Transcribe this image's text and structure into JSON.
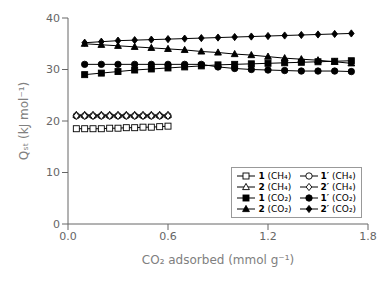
{
  "chart_data": {
    "type": "line",
    "title": "",
    "xlabel": "CO₂ adsorbed (mmol g⁻¹)",
    "ylabel": "Qₛₜ (kJ mol⁻¹)",
    "xlim": [
      0.0,
      1.8
    ],
    "ylim": [
      0,
      40
    ],
    "xticks": [
      {
        "value": 0.0,
        "label": "0.0"
      },
      0.6,
      1.2,
      1.8
    ],
    "yticks": [
      0,
      10,
      20,
      30,
      40
    ],
    "grid": false,
    "legend": "lower right",
    "series": [
      {
        "name": "1 (CH₄)",
        "color": "black",
        "marker": "open_square",
        "x": [
          0.05,
          0.1,
          0.15,
          0.2,
          0.25,
          0.3,
          0.35,
          0.4,
          0.45,
          0.5,
          0.55,
          0.6
        ],
        "values": [
          18.5,
          18.5,
          18.5,
          18.5,
          18.6,
          18.6,
          18.7,
          18.7,
          18.8,
          18.8,
          18.9,
          19.0
        ]
      },
      {
        "name": "1′ (CH₄)",
        "color": "black",
        "marker": "open_circle",
        "x": [
          0.05,
          0.1,
          0.15,
          0.2,
          0.25,
          0.3,
          0.35,
          0.4,
          0.45,
          0.5,
          0.55,
          0.6
        ],
        "values": [
          21.0,
          21.0,
          21.0,
          21.0,
          21.0,
          21.0,
          21.0,
          21.0,
          21.0,
          21.0,
          21.0,
          21.0
        ]
      },
      {
        "name": "2 (CH₄)",
        "color": "black",
        "marker": "open_triangle",
        "x": [
          0.05,
          0.1,
          0.15,
          0.2,
          0.25,
          0.3,
          0.35,
          0.4,
          0.45,
          0.5,
          0.55,
          0.6
        ],
        "values": [
          21.2,
          21.2,
          21.2,
          21.2,
          21.2,
          21.2,
          21.2,
          21.2,
          21.2,
          21.2,
          21.2,
          21.2
        ]
      },
      {
        "name": "2′ (CH₄)",
        "color": "black",
        "marker": "open_diamond",
        "x": [
          0.05,
          0.1,
          0.15,
          0.2,
          0.25,
          0.3,
          0.35,
          0.4,
          0.45,
          0.5,
          0.55,
          0.6
        ],
        "values": [
          21.0,
          21.0,
          21.0,
          21.0,
          21.0,
          21.0,
          21.0,
          21.0,
          21.0,
          21.0,
          21.0,
          21.0
        ]
      },
      {
        "name": "1 (CO₂)",
        "color": "black",
        "marker": "square",
        "x": [
          0.1,
          0.2,
          0.3,
          0.4,
          0.5,
          0.6,
          0.7,
          0.8,
          0.9,
          1.0,
          1.1,
          1.2,
          1.3,
          1.4,
          1.5,
          1.6,
          1.7
        ],
        "values": [
          29.0,
          29.3,
          29.6,
          29.9,
          30.1,
          30.3,
          30.5,
          30.7,
          30.9,
          31.0,
          31.1,
          31.2,
          31.3,
          31.4,
          31.5,
          31.6,
          31.7
        ]
      },
      {
        "name": "1′ (CO₂)",
        "color": "black",
        "marker": "circle",
        "x": [
          0.1,
          0.2,
          0.3,
          0.4,
          0.5,
          0.6,
          0.7,
          0.8,
          0.9,
          1.0,
          1.1,
          1.2,
          1.3,
          1.4,
          1.5,
          1.6,
          1.7
        ],
        "values": [
          31.0,
          31.0,
          31.0,
          31.0,
          31.0,
          31.0,
          31.0,
          31.0,
          30.5,
          30.2,
          30.0,
          29.9,
          29.8,
          29.7,
          29.7,
          29.7,
          29.6
        ]
      },
      {
        "name": "2 (CO₂)",
        "color": "black",
        "marker": "triangle",
        "x": [
          0.1,
          0.2,
          0.3,
          0.4,
          0.5,
          0.6,
          0.7,
          0.8,
          0.9,
          1.0,
          1.1,
          1.2,
          1.3,
          1.4,
          1.5,
          1.6,
          1.7
        ],
        "values": [
          35.0,
          34.8,
          34.6,
          34.4,
          34.2,
          34.0,
          33.8,
          33.5,
          33.3,
          33.0,
          32.8,
          32.5,
          32.2,
          32.0,
          31.8,
          31.5,
          31.2
        ]
      },
      {
        "name": "2′ (CO₂)",
        "color": "black",
        "marker": "diamond",
        "x": [
          0.1,
          0.2,
          0.3,
          0.4,
          0.5,
          0.6,
          0.7,
          0.8,
          0.9,
          1.0,
          1.1,
          1.2,
          1.3,
          1.4,
          1.5,
          1.6,
          1.7
        ],
        "values": [
          35.2,
          35.4,
          35.6,
          35.7,
          35.8,
          35.9,
          36.0,
          36.1,
          36.2,
          36.3,
          36.4,
          36.5,
          36.6,
          36.7,
          36.8,
          36.9,
          37.0
        ]
      }
    ]
  }
}
